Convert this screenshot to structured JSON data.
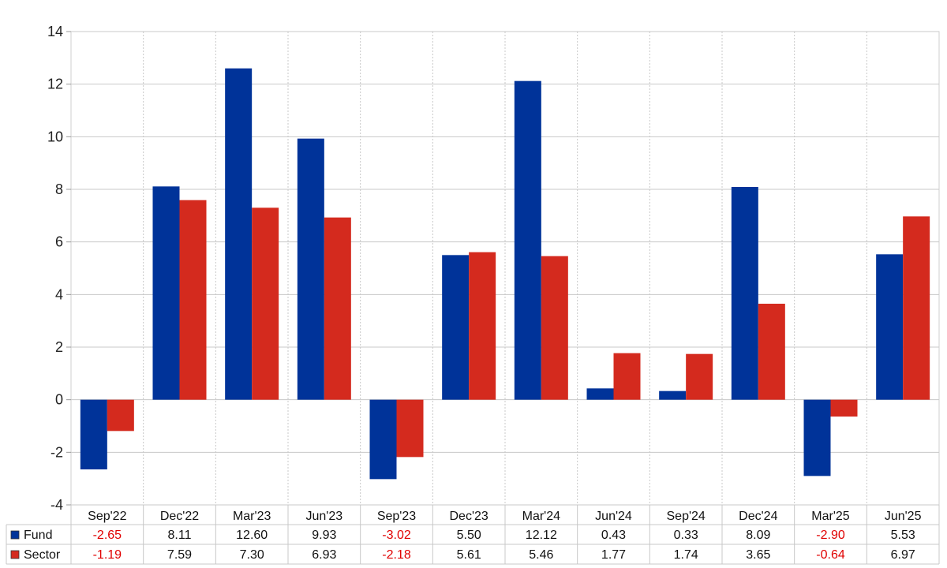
{
  "chart_data": {
    "type": "bar",
    "categories": [
      "Sep'22",
      "Dec'22",
      "Mar'23",
      "Jun'23",
      "Sep'23",
      "Dec'23",
      "Mar'24",
      "Jun'24",
      "Sep'24",
      "Dec'24",
      "Mar'25",
      "Jun'25"
    ],
    "series": [
      {
        "name": "Fund",
        "color": "#003399",
        "values": [
          -2.65,
          8.11,
          12.6,
          9.93,
          -3.02,
          5.5,
          12.12,
          0.43,
          0.33,
          8.09,
          -2.9,
          5.53
        ],
        "labels": [
          "-2.65",
          "8.11",
          "12.60",
          "9.93",
          "-3.02",
          "5.50",
          "12.12",
          "0.43",
          "0.33",
          "8.09",
          "-2.90",
          "5.53"
        ]
      },
      {
        "name": "Sector",
        "color": "#d42a1e",
        "values": [
          -1.19,
          7.59,
          7.3,
          6.93,
          -2.18,
          5.61,
          5.46,
          1.77,
          1.74,
          3.65,
          -0.64,
          6.97
        ],
        "labels": [
          "-1.19",
          "7.59",
          "7.30",
          "6.93",
          "-2.18",
          "5.61",
          "5.46",
          "1.77",
          "1.74",
          "3.65",
          "-0.64",
          "6.97"
        ]
      }
    ],
    "ylim": [
      -4,
      14
    ],
    "yticks": [
      "-4",
      "-2",
      "0",
      "2",
      "4",
      "6",
      "8",
      "10",
      "12",
      "14"
    ],
    "grid": true,
    "negative_label_color": "#e00000",
    "legend": "data table below chart"
  }
}
